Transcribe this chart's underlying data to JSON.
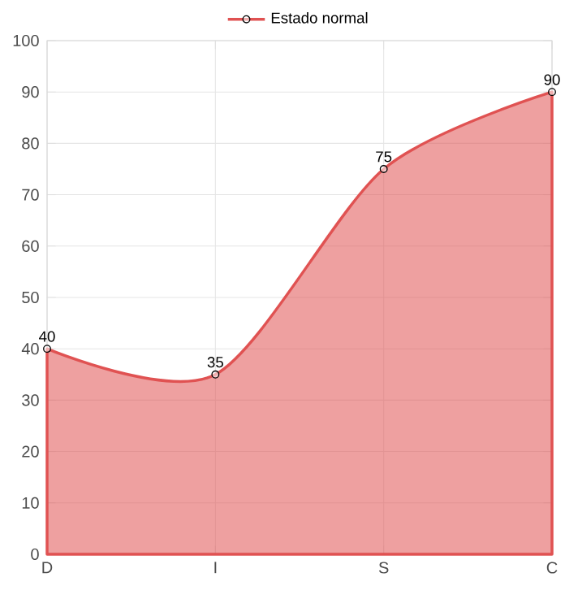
{
  "chart_data": {
    "type": "area",
    "categories": [
      "D",
      "I",
      "S",
      "C"
    ],
    "series": [
      {
        "name": "Estado normal",
        "color": "#e05252",
        "values": [
          40,
          35,
          75,
          90
        ]
      }
    ],
    "ylim": [
      0,
      100
    ],
    "yticks": [
      0,
      10,
      20,
      30,
      40,
      50,
      60,
      70,
      80,
      90,
      100
    ],
    "grid": true,
    "legend": "top",
    "marker": "circle",
    "line_style": "solid",
    "data_labels": true
  }
}
